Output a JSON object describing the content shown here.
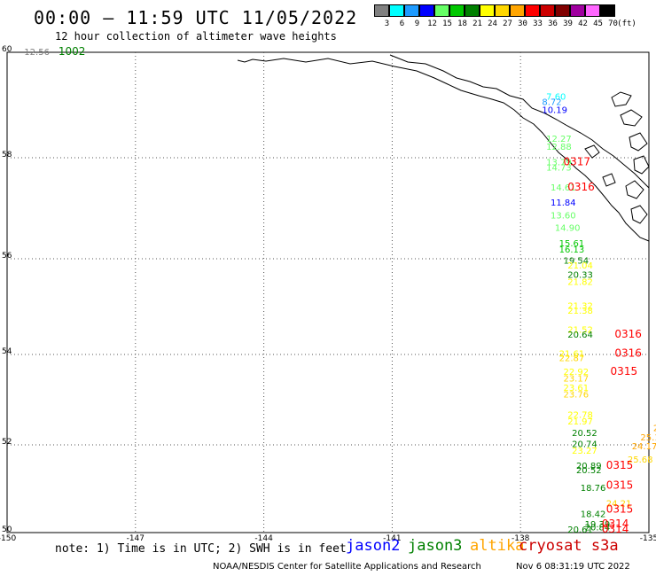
{
  "title": "00:00 – 11:59 UTC 11/05/2022",
  "subtitle": "12 hour collection of altimeter wave heights",
  "legend": {
    "unit": "(ft)",
    "items": [
      {
        "label": "3",
        "color": "#808080"
      },
      {
        "label": "6",
        "color": "#00ffff"
      },
      {
        "label": "9",
        "color": "#1e9bff"
      },
      {
        "label": "12",
        "color": "#0000ff"
      },
      {
        "label": "15",
        "color": "#66ff66"
      },
      {
        "label": "18",
        "color": "#00c800"
      },
      {
        "label": "21",
        "color": "#008000"
      },
      {
        "label": "24",
        "color": "#ffff00"
      },
      {
        "label": "27",
        "color": "#ffd700"
      },
      {
        "label": "30",
        "color": "#ffa500"
      },
      {
        "label": "33",
        "color": "#ff0000"
      },
      {
        "label": "36",
        "color": "#cc0000"
      },
      {
        "label": "39",
        "color": "#800000"
      },
      {
        "label": "42",
        "color": "#a000a0"
      },
      {
        "label": "45",
        "color": "#ff66ff"
      },
      {
        "label": "70",
        "color": "#000000"
      }
    ]
  },
  "axes": {
    "lat_ticks": [
      "60",
      "58",
      "56",
      "54",
      "52",
      "50"
    ],
    "lon_ticks": [
      "-150",
      "-147",
      "-144",
      "-141",
      "-138",
      "-135"
    ]
  },
  "chart_data": {
    "type": "scatter",
    "xlabel": "",
    "ylabel": "",
    "xlim": [
      -150,
      -135
    ],
    "ylim": [
      50,
      60
    ],
    "grid": true,
    "wave_heights": [
      {
        "lon": -149.6,
        "lat": 59.95,
        "v": "12.56",
        "color": "#808080"
      },
      {
        "lon": -137.4,
        "lat": 59.1,
        "v": "7.60",
        "color": "#00ffff"
      },
      {
        "lon": -137.5,
        "lat": 59.0,
        "v": "8.72",
        "color": "#1e9bff"
      },
      {
        "lon": -137.5,
        "lat": 58.85,
        "v": "10.19",
        "color": "#0000ff"
      },
      {
        "lon": -137.4,
        "lat": 58.3,
        "v": "12.27",
        "color": "#66ff66"
      },
      {
        "lon": -137.4,
        "lat": 58.15,
        "v": "12.88",
        "color": "#66ff66"
      },
      {
        "lon": -137.4,
        "lat": 57.85,
        "v": "13.79",
        "color": "#66ff66"
      },
      {
        "lon": -137.4,
        "lat": 57.75,
        "v": "14.73",
        "color": "#66ff66"
      },
      {
        "lon": -137.3,
        "lat": 57.35,
        "v": "14.61",
        "color": "#66ff66"
      },
      {
        "lon": -137.3,
        "lat": 57.05,
        "v": "11.84",
        "color": "#0000ff"
      },
      {
        "lon": -137.3,
        "lat": 56.8,
        "v": "13.60",
        "color": "#66ff66"
      },
      {
        "lon": -137.2,
        "lat": 56.55,
        "v": "14.90",
        "color": "#66ff66"
      },
      {
        "lon": -137.1,
        "lat": 56.25,
        "v": "15.61",
        "color": "#00c800"
      },
      {
        "lon": -137.1,
        "lat": 56.12,
        "v": "16.13",
        "color": "#00c800"
      },
      {
        "lon": -137.0,
        "lat": 55.9,
        "v": "19.54",
        "color": "#008000"
      },
      {
        "lon": -136.9,
        "lat": 55.8,
        "v": "21.04",
        "color": "#ffff00"
      },
      {
        "lon": -136.9,
        "lat": 55.6,
        "v": "20.33",
        "color": "#008000"
      },
      {
        "lon": -136.9,
        "lat": 55.45,
        "v": "21.82",
        "color": "#ffff00"
      },
      {
        "lon": -136.9,
        "lat": 54.95,
        "v": "21.32",
        "color": "#ffff00"
      },
      {
        "lon": -136.9,
        "lat": 54.85,
        "v": "21.38",
        "color": "#ffff00"
      },
      {
        "lon": -136.9,
        "lat": 54.45,
        "v": "21.52",
        "color": "#ffff00"
      },
      {
        "lon": -136.9,
        "lat": 54.35,
        "v": "20.64",
        "color": "#008000"
      },
      {
        "lon": -137.1,
        "lat": 53.95,
        "v": "21.61",
        "color": "#ffff00"
      },
      {
        "lon": -137.1,
        "lat": 53.85,
        "v": "22.87",
        "color": "#ffd700"
      },
      {
        "lon": -137.0,
        "lat": 53.55,
        "v": "22.92",
        "color": "#ffff00"
      },
      {
        "lon": -137.0,
        "lat": 53.4,
        "v": "23.17",
        "color": "#ffd700"
      },
      {
        "lon": -137.0,
        "lat": 53.2,
        "v": "23.61",
        "color": "#ffff00"
      },
      {
        "lon": -137.0,
        "lat": 53.05,
        "v": "23.76",
        "color": "#ffd700"
      },
      {
        "lon": -136.9,
        "lat": 52.6,
        "v": "22.78",
        "color": "#ffff00"
      },
      {
        "lon": -136.9,
        "lat": 52.45,
        "v": "21.97",
        "color": "#ffff00"
      },
      {
        "lon": -136.8,
        "lat": 52.2,
        "v": "20.52",
        "color": "#008000"
      },
      {
        "lon": -136.8,
        "lat": 51.95,
        "v": "20.74",
        "color": "#008000"
      },
      {
        "lon": -136.8,
        "lat": 51.8,
        "v": "23.27",
        "color": "#ffff00"
      },
      {
        "lon": -136.7,
        "lat": 51.45,
        "v": "20.89",
        "color": "#008000"
      },
      {
        "lon": -136.7,
        "lat": 51.35,
        "v": "20.52",
        "color": "#008000"
      },
      {
        "lon": -136.6,
        "lat": 50.95,
        "v": "18.76",
        "color": "#008000"
      },
      {
        "lon": -136.0,
        "lat": 50.6,
        "v": "24.21",
        "color": "#ffd700"
      },
      {
        "lon": -136.6,
        "lat": 50.35,
        "v": "18.42",
        "color": "#008000"
      },
      {
        "lon": -136.5,
        "lat": 50.12,
        "v": "19.39",
        "color": "#008000"
      },
      {
        "lon": -136.5,
        "lat": 50.05,
        "v": "20.84",
        "color": "#008000"
      },
      {
        "lon": -136.9,
        "lat": 49.95,
        "v": "20.61",
        "color": "#008000"
      },
      {
        "lon": -135.5,
        "lat": 51.6,
        "v": "25.68",
        "color": "#ffd700"
      },
      {
        "lon": -135.4,
        "lat": 51.9,
        "v": "24.17",
        "color": "#ffa500"
      },
      {
        "lon": -135.2,
        "lat": 52.1,
        "v": "25.16",
        "color": "#ffa500"
      },
      {
        "lon": -134.9,
        "lat": 52.3,
        "v": "24",
        "color": "#ffa500"
      }
    ],
    "track_ids": [
      {
        "lon": -148.8,
        "lat": 59.95,
        "v": "1002",
        "color": "#008000"
      },
      {
        "lon": -137.0,
        "lat": 57.85,
        "v": "0317",
        "color": "#ff0000"
      },
      {
        "lon": -136.9,
        "lat": 57.35,
        "v": "0316",
        "color": "#ff0000"
      },
      {
        "lon": -135.8,
        "lat": 54.35,
        "v": "0316",
        "color": "#ff0000"
      },
      {
        "lon": -135.8,
        "lat": 53.95,
        "v": "0316",
        "color": "#ff0000"
      },
      {
        "lon": -135.9,
        "lat": 53.55,
        "v": "0315",
        "color": "#ff0000"
      },
      {
        "lon": -136.0,
        "lat": 51.45,
        "v": "0315",
        "color": "#ff0000"
      },
      {
        "lon": -136.0,
        "lat": 51.0,
        "v": "0315",
        "color": "#ff0000"
      },
      {
        "lon": -136.0,
        "lat": 50.45,
        "v": "0315",
        "color": "#ff0000"
      },
      {
        "lon": -136.1,
        "lat": 50.12,
        "v": "0314",
        "color": "#ff0000"
      },
      {
        "lon": -136.1,
        "lat": 49.98,
        "v": "0314",
        "color": "#ff0000"
      }
    ]
  },
  "note": "note: 1) Time is in UTC; 2) SWH is in feet",
  "satellites": [
    {
      "name": "jason2",
      "color": "#0000ff"
    },
    {
      "name": "jason3",
      "color": "#008000"
    },
    {
      "name": "altika",
      "color": "#ffa500"
    },
    {
      "name": "cryosat s3a",
      "color": "#cc0000"
    }
  ],
  "footer": "NOAA/NESDIS Center for Satellite Applications and Research",
  "footer_time": "Nov  6 08:31:19 UTC 2022"
}
